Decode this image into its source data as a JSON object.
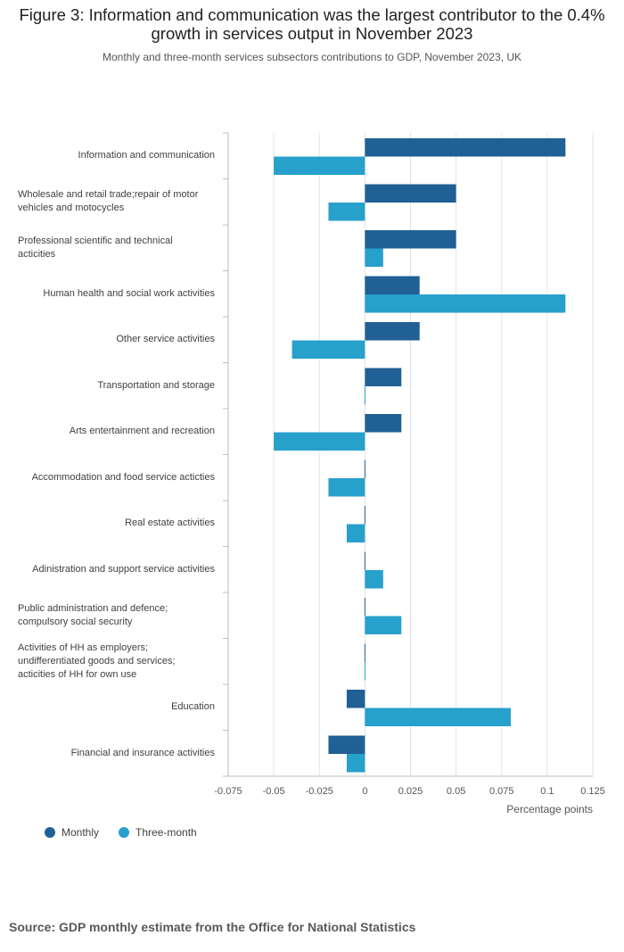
{
  "title": "Figure 3: Information and communication was the largest contributor to the 0.4% growth in services output in November 2023",
  "subtitle": "Monthly and three-month services subsectors contributions to GDP, November 2023, UK",
  "source": "Source: GDP monthly estimate from the Office for National Statistics",
  "colors": {
    "monthly": "#206095",
    "three_month": "#27a0cc",
    "grid": "#e3e3e3",
    "axis": "#bdbdbd"
  },
  "chart_data": {
    "type": "bar",
    "orientation": "horizontal",
    "categories": [
      "Information and communication",
      "Wholesale and retail trade;repair of motor vehicles and motocycles",
      "Professional scientific and technical acticities",
      "Human health and social work activities",
      "Other service activities",
      "Transportation and storage",
      "Arts entertainment and recreation",
      "Accommodation and food service acticties",
      "Real estate activities",
      "Adinistration and support service activities",
      "Public administration and defence; compulsory social security",
      "Activities of HH as employers; undifferentiated goods and services; acticities of HH for own use",
      "Education",
      "Financial and insurance activities"
    ],
    "category_lines": [
      [
        "Information and communication"
      ],
      [
        "Wholesale and retail trade;repair of motor",
        "vehicles and motocycles"
      ],
      [
        "Professional scientific and technical",
        "acticities"
      ],
      [
        "Human health and social work activities"
      ],
      [
        "Other service activities"
      ],
      [
        "Transportation and storage"
      ],
      [
        "Arts entertainment and recreation"
      ],
      [
        "Accommodation and food service acticties"
      ],
      [
        "Real estate activities"
      ],
      [
        "Adinistration and support service activities"
      ],
      [
        "Public administration and defence;",
        "compulsory social security"
      ],
      [
        "Activities of HH as employers;",
        "undifferentiated goods and services;",
        "acticities of HH for own use"
      ],
      [
        "Education"
      ],
      [
        "Financial and insurance activities"
      ]
    ],
    "series": [
      {
        "name": "Monthly",
        "color": "#206095",
        "values": [
          0.11,
          0.05,
          0.05,
          0.03,
          0.03,
          0.02,
          0.02,
          0,
          0,
          0,
          0,
          0,
          -0.01,
          -0.02
        ]
      },
      {
        "name": "Three-month",
        "color": "#27a0cc",
        "values": [
          -0.05,
          -0.02,
          0.01,
          0.11,
          -0.04,
          0,
          -0.05,
          -0.02,
          -0.01,
          0.01,
          0.02,
          0,
          0.08,
          -0.01
        ]
      }
    ],
    "xlim": [
      -0.075,
      0.125
    ],
    "xticks": [
      -0.075,
      -0.05,
      -0.025,
      0,
      0.025,
      0.05,
      0.075,
      0.1,
      0.125
    ],
    "xtick_labels": [
      "-0.075",
      "-0.05",
      "-0.025",
      "0",
      "0.025",
      "0.05",
      "0.075",
      "0.1",
      "0.125"
    ],
    "xlabel": "Percentage points",
    "ylabel": "",
    "grid": true,
    "legend_position": "bottom-left"
  }
}
